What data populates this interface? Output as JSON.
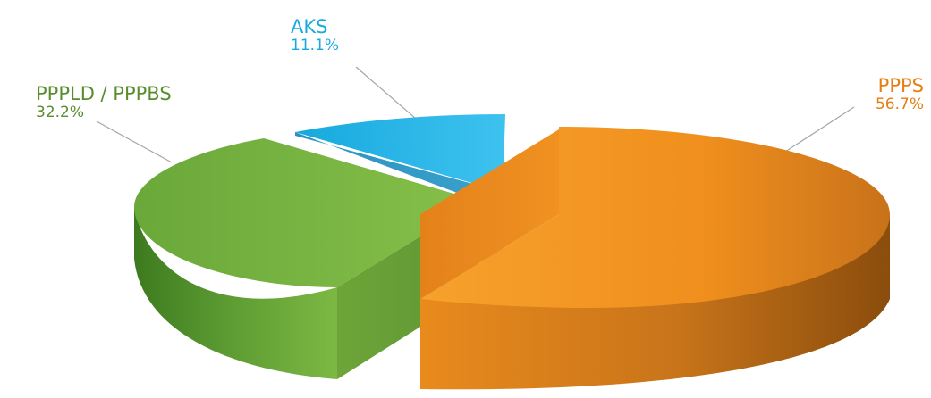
{
  "chart_data": {
    "type": "pie",
    "style": "3d-exploded",
    "slices": [
      {
        "label": "PPPS",
        "percent_label": "56.7%",
        "value": 56.7,
        "color": "#f39220"
      },
      {
        "label": "PPPLD / PPPBS",
        "percent_label": "32.2%",
        "value": 32.2,
        "color": "#7db842"
      },
      {
        "label": "AKS",
        "percent_label": "11.1%",
        "value": 11.1,
        "color": "#1fb5e6"
      }
    ],
    "legend": "none",
    "label_placement": "outside-with-leader-lines"
  }
}
